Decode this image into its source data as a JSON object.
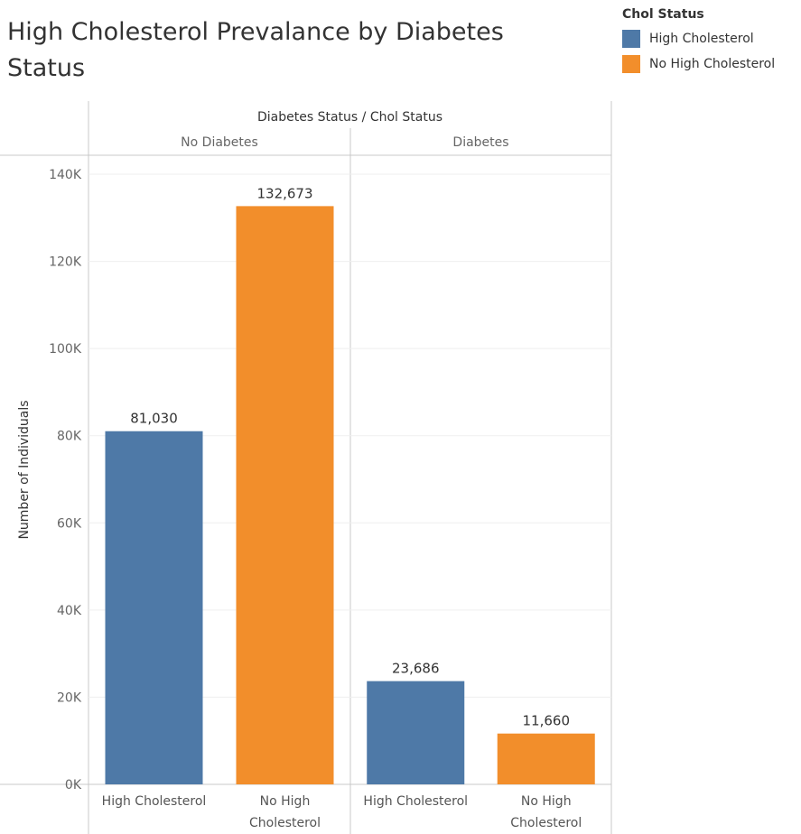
{
  "chart_data": {
    "type": "bar",
    "title": "High Cholesterol Prevalance by Diabetes Status",
    "column_header": "Diabetes Status / Chol Status",
    "ylabel": "Number of Individuals",
    "ylim": [
      0,
      140000
    ],
    "yticks": [
      {
        "value": 0,
        "label": "0K"
      },
      {
        "value": 20000,
        "label": "20K"
      },
      {
        "value": 40000,
        "label": "40K"
      },
      {
        "value": 60000,
        "label": "60K"
      },
      {
        "value": 80000,
        "label": "80K"
      },
      {
        "value": 100000,
        "label": "100K"
      },
      {
        "value": 120000,
        "label": "120K"
      },
      {
        "value": 140000,
        "label": "140K"
      }
    ],
    "grid": true,
    "legend": {
      "title": "Chol Status",
      "placement": "top-right",
      "items": [
        {
          "name": "High Cholesterol",
          "color": "#4e79a7"
        },
        {
          "name": "No High Cholesterol",
          "color": "#f28e2b"
        }
      ]
    },
    "panels": [
      {
        "name": "No Diabetes",
        "bars": [
          {
            "category": [
              "High Cholesterol"
            ],
            "value": 81030,
            "label": "81,030",
            "color": "#4e79a7"
          },
          {
            "category": [
              "No High",
              "Cholesterol"
            ],
            "value": 132673,
            "label": "132,673",
            "color": "#f28e2b"
          }
        ]
      },
      {
        "name": "Diabetes",
        "bars": [
          {
            "category": [
              "High Cholesterol"
            ],
            "value": 23686,
            "label": "23,686",
            "color": "#4e79a7"
          },
          {
            "category": [
              "No High",
              "Cholesterol"
            ],
            "value": 11660,
            "label": "11,660",
            "color": "#f28e2b"
          }
        ]
      }
    ]
  }
}
